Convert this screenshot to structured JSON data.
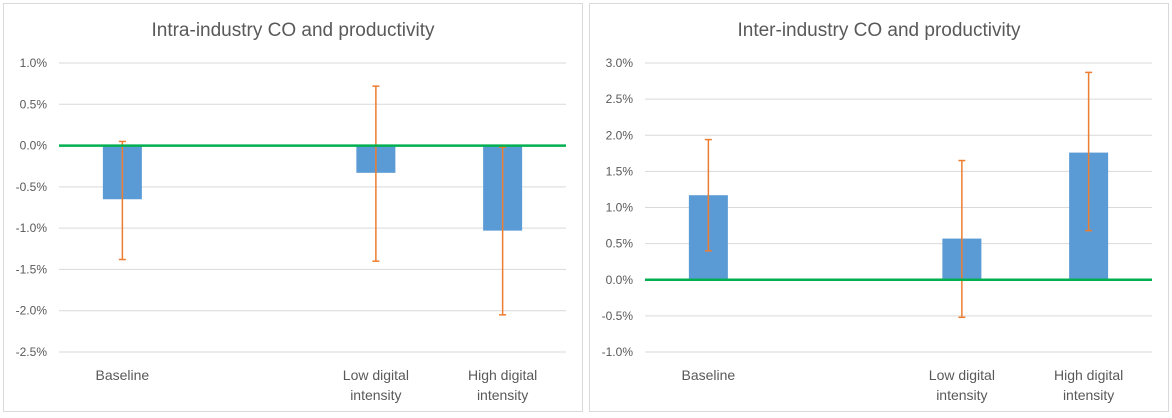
{
  "colors": {
    "bar": "#5b9bd5",
    "error_bar": "#ed7d31",
    "zero_line": "#00b050",
    "grid": "#d9d9d9",
    "text": "#595959"
  },
  "chart_data": [
    {
      "type": "bar",
      "title": "Intra-industry CO and productivity",
      "categories": [
        [
          "Baseline"
        ],
        [
          "Low digital",
          "intensity"
        ],
        [
          "High digital",
          "intensity"
        ]
      ],
      "category_slots": [
        0,
        2,
        3
      ],
      "values": [
        -0.65,
        -0.33,
        -1.03
      ],
      "error_low": [
        -1.38,
        -1.4,
        -2.05
      ],
      "error_high": [
        0.05,
        0.72,
        -0.02
      ],
      "ylim": [
        -2.5,
        1.0
      ],
      "yticks": [
        1.0,
        0.5,
        0.0,
        -0.5,
        -1.0,
        -1.5,
        -2.0,
        -2.5
      ],
      "ytick_labels": [
        "1.0%",
        "0.5%",
        "0.0%",
        "-0.5%",
        "-1.0%",
        "-1.5%",
        "-2.0%",
        "-2.5%"
      ],
      "grid": true
    },
    {
      "type": "bar",
      "title": "Inter-industry CO and productivity",
      "categories": [
        [
          "Baseline"
        ],
        [
          "Low digital",
          "intensity"
        ],
        [
          "High digital",
          "intensity"
        ]
      ],
      "category_slots": [
        0,
        2,
        3
      ],
      "values": [
        1.17,
        0.57,
        1.76
      ],
      "error_low": [
        0.4,
        -0.52,
        0.68
      ],
      "error_high": [
        1.94,
        1.65,
        2.87
      ],
      "ylim": [
        -1.0,
        3.0
      ],
      "yticks": [
        3.0,
        2.5,
        2.0,
        1.5,
        1.0,
        0.5,
        0.0,
        -0.5,
        -1.0
      ],
      "ytick_labels": [
        "3.0%",
        "2.5%",
        "2.0%",
        "1.5%",
        "1.0%",
        "0.5%",
        "0.0%",
        "-0.5%",
        "-1.0%"
      ],
      "grid": true
    }
  ]
}
